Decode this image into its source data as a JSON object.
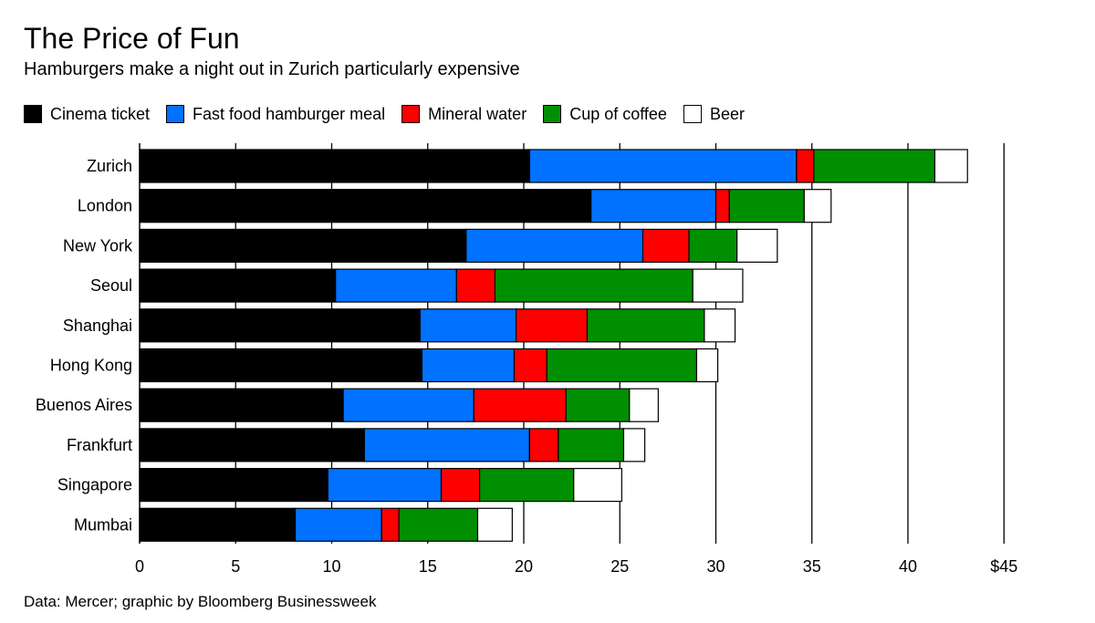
{
  "header": {
    "title": "The Price of Fun",
    "subtitle": "Hamburgers make a night out in Zurich particularly expensive"
  },
  "footer": {
    "source": "Data: Mercer; graphic by Bloomberg Businessweek"
  },
  "colors": {
    "cinema": "#000000",
    "hamburger": "#0072ff",
    "water": "#ff0000",
    "coffee": "#008f00",
    "beer": "#ffffff",
    "grid": "#000000"
  },
  "chart_data": {
    "type": "bar",
    "orientation": "horizontal",
    "stacked": true,
    "title": "The Price of Fun",
    "subtitle": "Hamburgers make a night out in Zurich particularly expensive",
    "xlabel": "",
    "ylabel": "",
    "xlim": [
      0,
      45
    ],
    "x_ticks": [
      0,
      5,
      10,
      15,
      20,
      25,
      30,
      35,
      40,
      45
    ],
    "x_tick_labels": [
      "0",
      "5",
      "10",
      "15",
      "20",
      "25",
      "30",
      "35",
      "40",
      "$45"
    ],
    "grid": "vertical",
    "legend_position": "top-left",
    "categories": [
      "Zurich",
      "London",
      "New York",
      "Seoul",
      "Shanghai",
      "Hong Kong",
      "Buenos Aires",
      "Frankfurt",
      "Singapore",
      "Mumbai"
    ],
    "series": [
      {
        "name": "Cinema ticket",
        "color": "#000000",
        "values": [
          20.3,
          23.5,
          17.0,
          10.2,
          14.6,
          14.7,
          10.6,
          11.7,
          9.8,
          8.1
        ]
      },
      {
        "name": "Fast food hamburger meal",
        "color": "#0072ff",
        "values": [
          13.9,
          6.5,
          9.2,
          6.3,
          5.0,
          4.8,
          6.8,
          8.6,
          5.9,
          4.5
        ]
      },
      {
        "name": "Mineral water",
        "color": "#ff0000",
        "values": [
          0.9,
          0.7,
          2.4,
          2.0,
          3.7,
          1.7,
          4.8,
          1.5,
          2.0,
          0.9
        ]
      },
      {
        "name": "Cup of coffee",
        "color": "#008f00",
        "values": [
          6.3,
          3.9,
          2.5,
          10.3,
          6.1,
          7.8,
          3.3,
          3.4,
          4.9,
          4.1
        ]
      },
      {
        "name": "Beer",
        "color": "#ffffff",
        "values": [
          1.7,
          1.4,
          2.1,
          2.6,
          1.6,
          1.1,
          1.5,
          1.1,
          2.5,
          1.8
        ]
      }
    ]
  }
}
